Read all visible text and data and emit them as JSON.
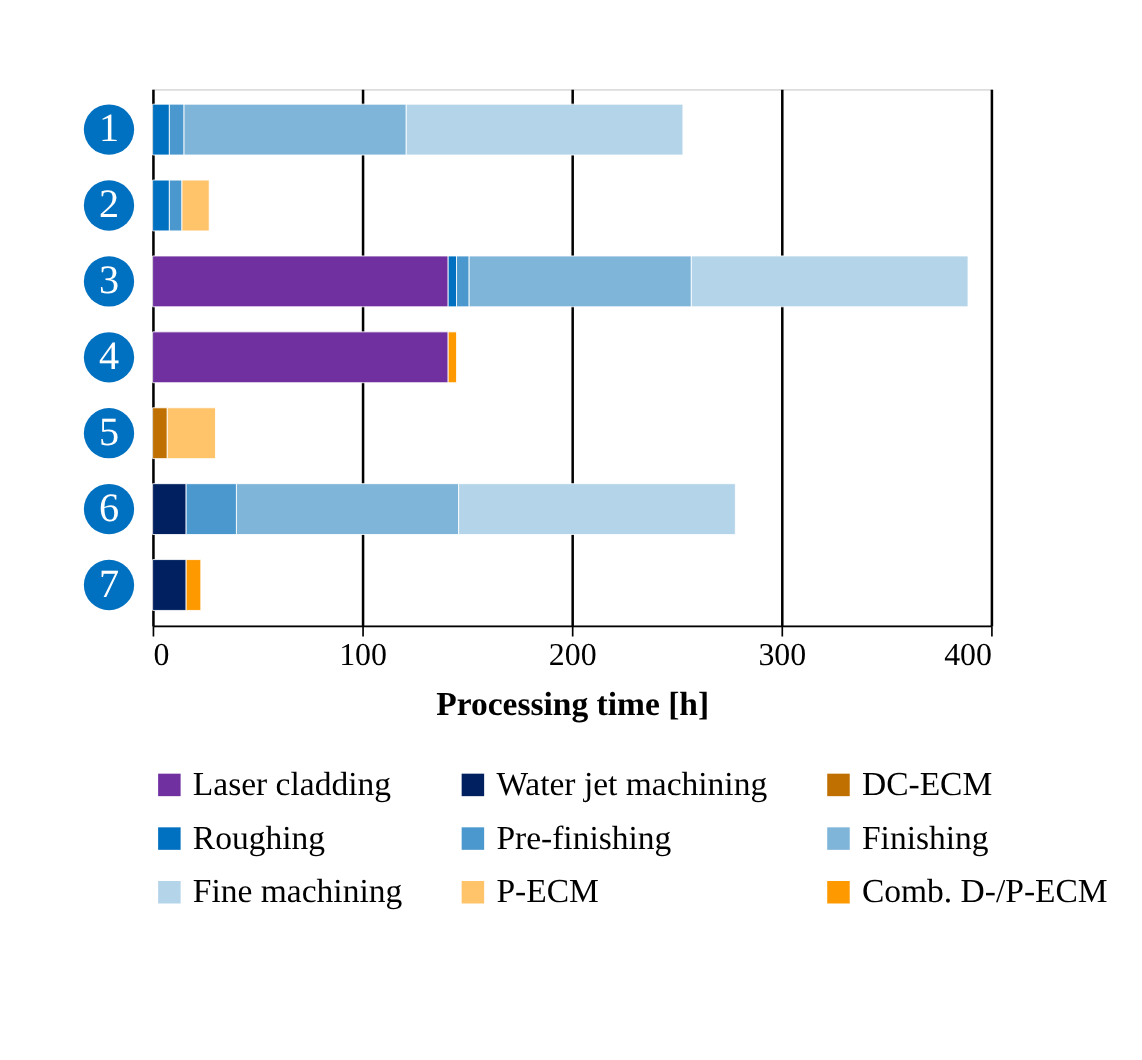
{
  "chart_data": {
    "type": "bar",
    "orientation": "horizontal",
    "stacked": true,
    "xlabel": "Processing time [h]",
    "categories": [
      "1",
      "2",
      "3",
      "4",
      "5",
      "6",
      "7"
    ],
    "xlim": [
      0,
      400
    ],
    "xticks": [
      0,
      100,
      200,
      300,
      400
    ],
    "grid": "x",
    "legend": "bottom",
    "series": [
      {
        "name": "Laser cladding",
        "color": "#7030a0",
        "values": [
          null,
          null,
          141,
          141,
          null,
          null,
          null
        ]
      },
      {
        "name": "Water jet machining",
        "color": "#002060",
        "values": [
          null,
          null,
          null,
          null,
          null,
          16,
          16
        ]
      },
      {
        "name": "DC-ECM",
        "color": "#c07000",
        "values": [
          null,
          null,
          null,
          null,
          7,
          null,
          null
        ]
      },
      {
        "name": "Roughing",
        "color": "#0070c0",
        "values": [
          8,
          8,
          4,
          null,
          null,
          null,
          null
        ]
      },
      {
        "name": "Pre-finishing",
        "color": "#4a98cd",
        "values": [
          7,
          6,
          6,
          null,
          null,
          24,
          null
        ]
      },
      {
        "name": "Finishing",
        "color": "#7fb5d9",
        "values": [
          106,
          null,
          106,
          null,
          null,
          106,
          null
        ]
      },
      {
        "name": "Fine machining",
        "color": "#b4d4e9",
        "values": [
          132,
          null,
          132,
          null,
          null,
          132,
          null
        ]
      },
      {
        "name": "P-ECM",
        "color": "#ffc36a",
        "values": [
          null,
          13,
          null,
          null,
          23,
          null,
          null
        ]
      },
      {
        "name": "Comb. D-/P-ECM",
        "color": "#ff9900",
        "values": [
          null,
          null,
          null,
          4,
          null,
          null,
          7
        ]
      }
    ]
  }
}
